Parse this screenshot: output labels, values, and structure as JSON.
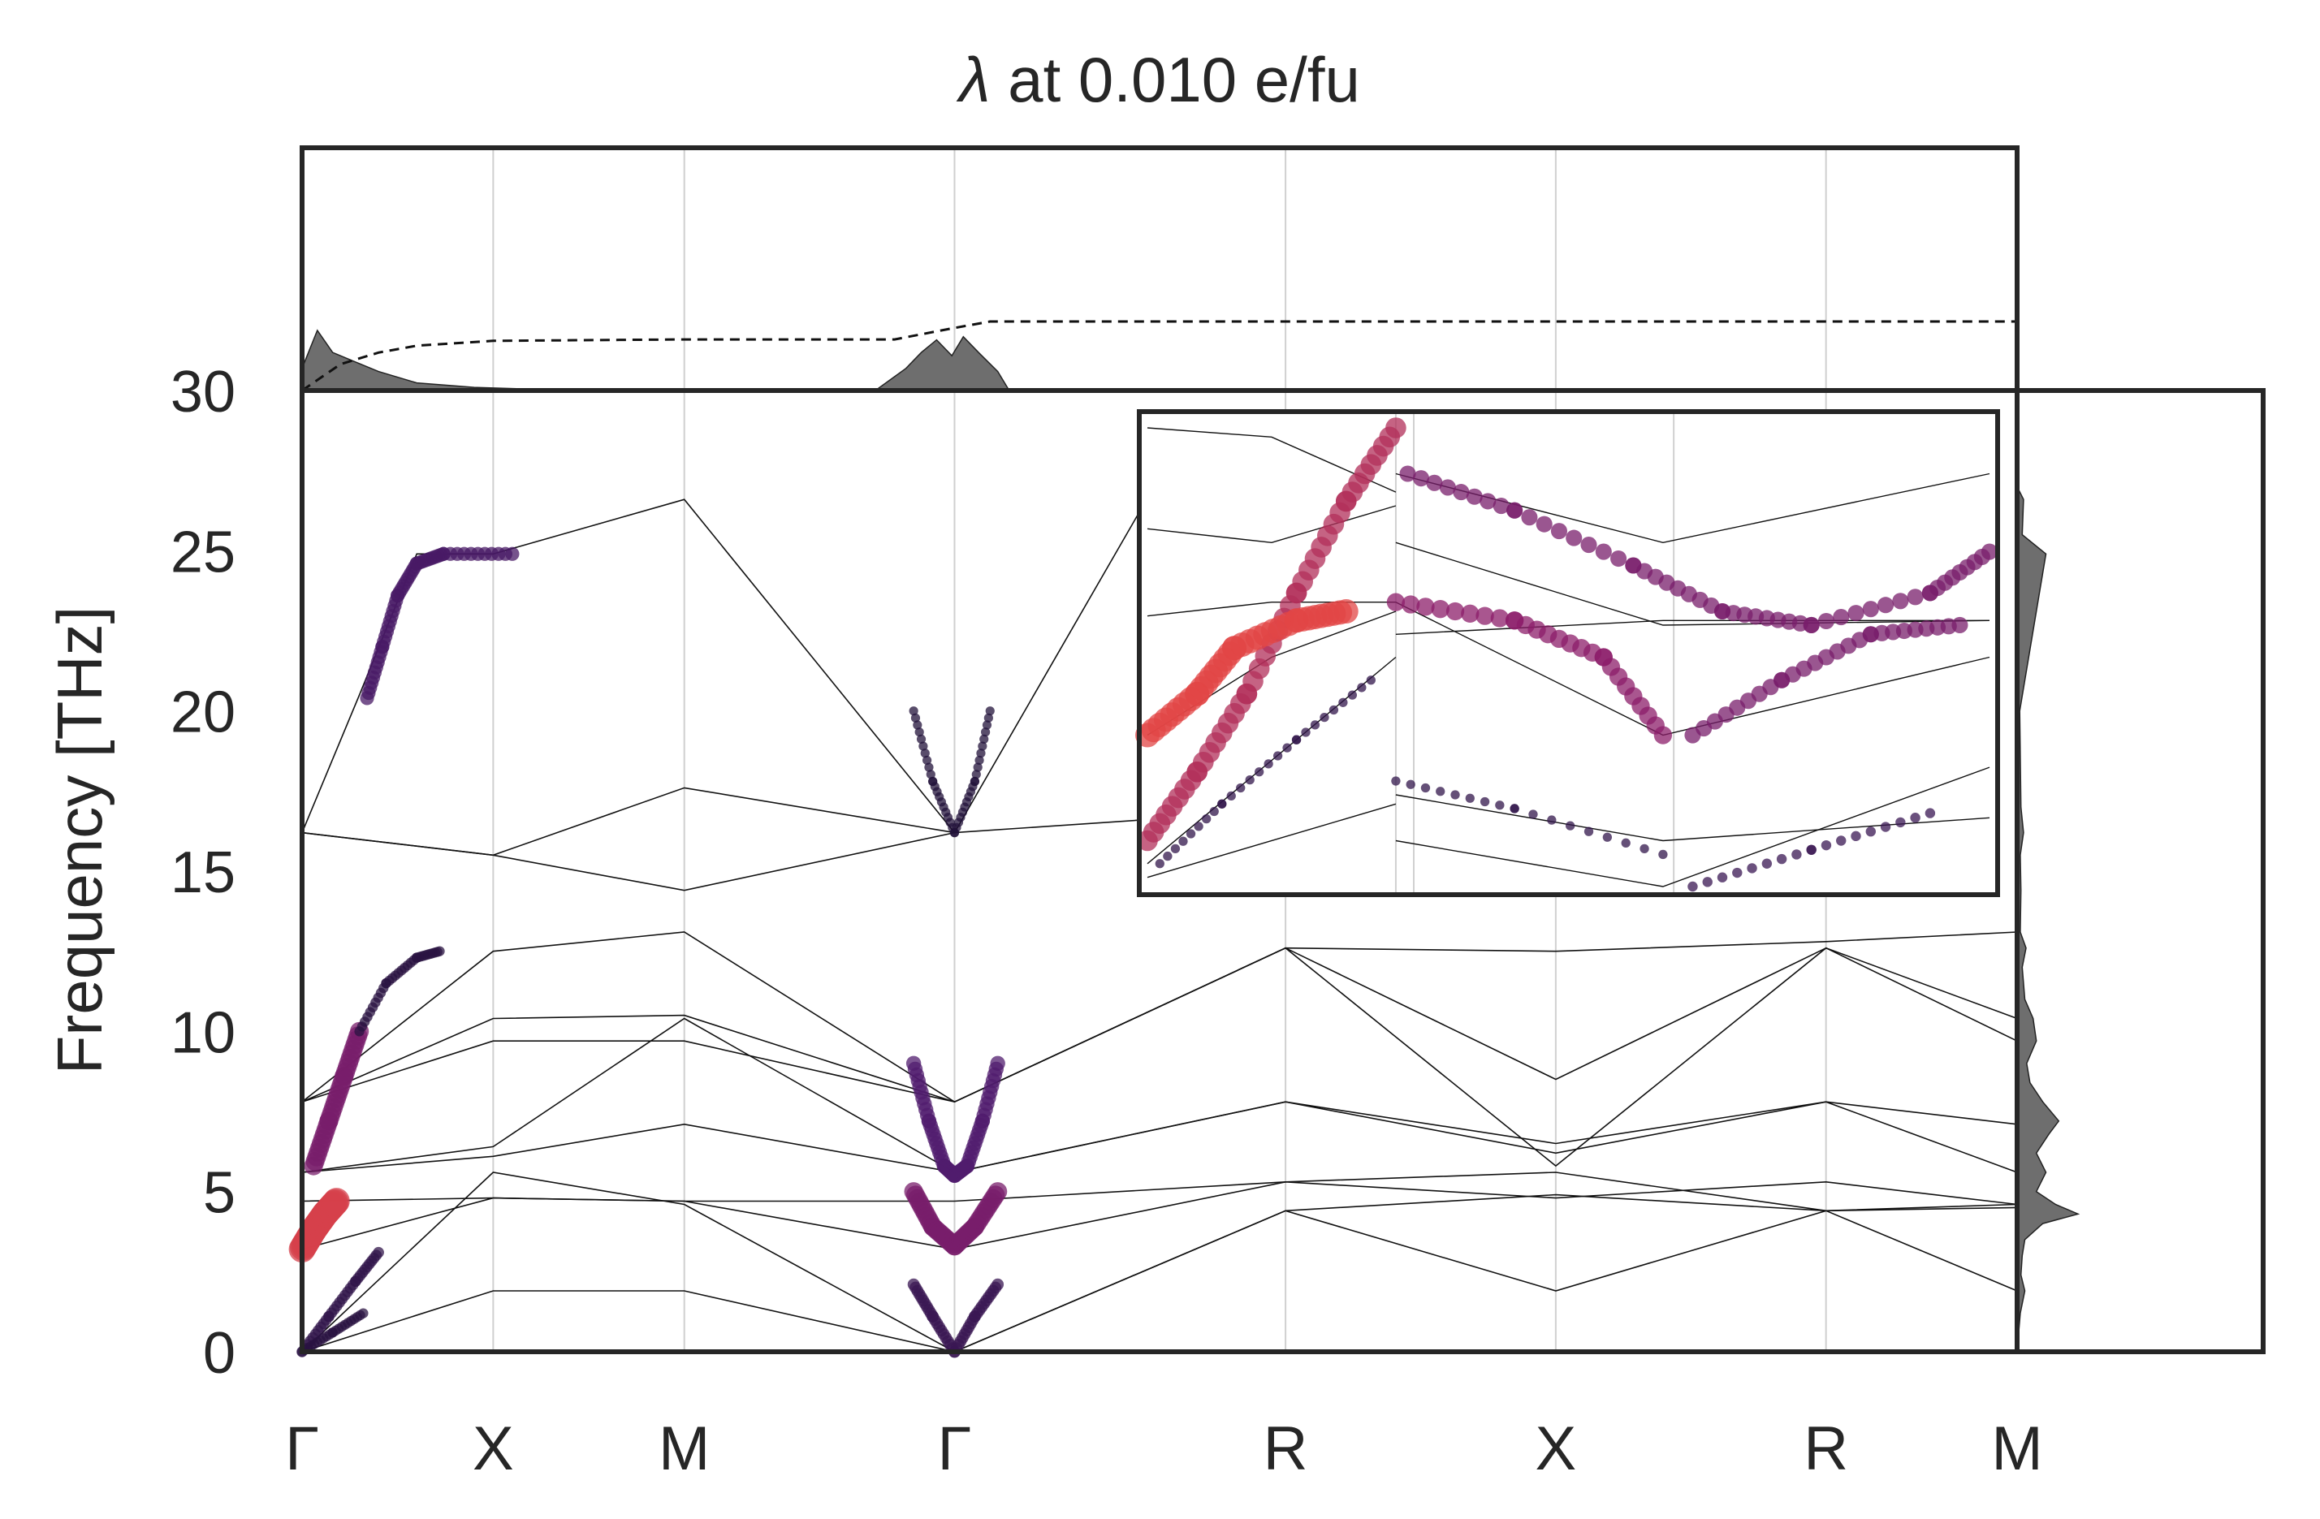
{
  "chart_data": {
    "type": "line",
    "title_symbol": "λ",
    "title_rest": " at 0.010 e/fu",
    "ylabel": "Frequency [THz]",
    "xlabel": "",
    "ylim": [
      0,
      30
    ],
    "yticks": [
      0,
      5,
      10,
      15,
      20,
      25,
      30
    ],
    "high_symmetry_points": [
      {
        "label": "Γ",
        "q": 0.0
      },
      {
        "label": "X",
        "q": 0.5
      },
      {
        "label": "M",
        "q": 1.0
      },
      {
        "label": "Γ",
        "q": 1.707
      },
      {
        "label": "R",
        "q": 2.573
      },
      {
        "label": "X",
        "q": 3.28
      },
      {
        "label": "R",
        "q": 3.987
      },
      {
        "label": "M",
        "q": 4.487
      }
    ],
    "series": [
      {
        "values": [
          [
            0.0,
            16.2
          ],
          [
            0.5,
            15.5
          ],
          [
            1.0,
            14.4
          ],
          [
            1.707,
            16.2
          ]
        ]
      },
      {
        "values": [
          [
            0.0,
            16.2
          ],
          [
            0.5,
            15.5
          ],
          [
            1.0,
            17.6
          ],
          [
            1.707,
            16.2
          ],
          [
            2.573,
            16.9
          ],
          [
            3.28,
            16.9
          ]
        ]
      },
      {
        "values": [
          [
            0.0,
            16.2
          ],
          [
            0.15,
            20.5
          ],
          [
            0.3,
            24.9
          ],
          [
            0.5,
            24.9
          ],
          [
            1.0,
            26.6
          ],
          [
            1.707,
            16.2
          ],
          [
            2.2,
            26.4
          ]
        ]
      },
      {
        "values": [
          [
            0.0,
            7.8
          ],
          [
            0.5,
            12.5
          ],
          [
            1.0,
            13.1
          ],
          [
            1.707,
            7.8
          ],
          [
            2.573,
            12.6
          ],
          [
            3.28,
            12.5
          ],
          [
            3.987,
            12.8
          ],
          [
            4.487,
            13.1
          ]
        ]
      },
      {
        "values": [
          [
            0.0,
            7.8
          ],
          [
            0.5,
            9.7
          ],
          [
            1.0,
            9.7
          ],
          [
            1.707,
            7.8
          ],
          [
            2.573,
            12.6
          ],
          [
            3.28,
            5.8
          ],
          [
            3.987,
            12.6
          ],
          [
            4.487,
            9.7
          ]
        ]
      },
      {
        "values": [
          [
            0.0,
            7.8
          ],
          [
            0.5,
            10.4
          ],
          [
            1.0,
            10.5
          ],
          [
            1.707,
            7.8
          ],
          [
            2.573,
            12.6
          ],
          [
            3.28,
            8.5
          ],
          [
            3.987,
            12.6
          ],
          [
            4.487,
            10.4
          ]
        ]
      },
      {
        "values": [
          [
            0.0,
            5.6
          ],
          [
            0.5,
            6.4
          ],
          [
            1.0,
            10.4
          ],
          [
            1.707,
            5.6
          ],
          [
            2.573,
            7.8
          ],
          [
            3.28,
            6.5
          ],
          [
            3.987,
            7.8
          ],
          [
            4.487,
            7.1
          ]
        ]
      },
      {
        "values": [
          [
            0.0,
            5.6
          ],
          [
            0.5,
            6.1
          ],
          [
            1.0,
            7.1
          ],
          [
            1.707,
            5.6
          ],
          [
            2.573,
            7.8
          ],
          [
            3.28,
            6.2
          ],
          [
            3.987,
            7.8
          ],
          [
            4.487,
            5.6
          ]
        ]
      },
      {
        "values": [
          [
            0.0,
            4.7
          ],
          [
            0.5,
            4.8
          ],
          [
            1.0,
            4.7
          ],
          [
            1.707,
            4.7
          ],
          [
            2.573,
            5.3
          ],
          [
            3.28,
            4.8
          ],
          [
            3.987,
            5.3
          ],
          [
            4.487,
            4.6
          ]
        ]
      },
      {
        "values": [
          [
            0.0,
            3.2
          ],
          [
            0.5,
            4.8
          ],
          [
            1.0,
            4.7
          ],
          [
            1.707,
            3.2
          ],
          [
            2.573,
            5.3
          ],
          [
            3.28,
            5.6
          ],
          [
            3.987,
            4.4
          ],
          [
            4.487,
            4.6
          ]
        ]
      },
      {
        "values": [
          [
            0.0,
            0.0
          ],
          [
            0.5,
            5.6
          ],
          [
            1.0,
            4.6
          ],
          [
            1.707,
            0.0
          ],
          [
            2.573,
            4.4
          ],
          [
            3.28,
            4.9
          ],
          [
            3.987,
            4.4
          ],
          [
            4.487,
            4.5
          ]
        ]
      },
      {
        "values": [
          [
            0.0,
            0.0
          ],
          [
            0.5,
            1.9
          ],
          [
            1.0,
            1.9
          ],
          [
            1.707,
            0.0
          ],
          [
            2.573,
            4.4
          ],
          [
            3.28,
            1.9
          ],
          [
            3.987,
            4.4
          ],
          [
            4.487,
            1.9
          ]
        ]
      }
    ],
    "coupling_segments": [
      {
        "points": [
          [
            0.0,
            0.0
          ],
          [
            0.07,
            1.1
          ],
          [
            0.14,
            2.2
          ],
          [
            0.2,
            3.1
          ]
        ],
        "strength": 0.15
      },
      {
        "points": [
          [
            0.0,
            0.0
          ],
          [
            0.08,
            0.6
          ],
          [
            0.16,
            1.2
          ]
        ],
        "strength": 0.1
      },
      {
        "points": [
          [
            0.0,
            3.2
          ],
          [
            0.03,
            3.8
          ],
          [
            0.06,
            4.3
          ],
          [
            0.09,
            4.7
          ]
        ],
        "strength": 0.95
      },
      {
        "points": [
          [
            0.03,
            5.8
          ],
          [
            0.07,
            7.2
          ],
          [
            0.11,
            8.6
          ],
          [
            0.15,
            10.0
          ]
        ],
        "strength": 0.55
      },
      {
        "points": [
          [
            0.15,
            10.0
          ],
          [
            0.22,
            11.5
          ],
          [
            0.3,
            12.3
          ],
          [
            0.36,
            12.5
          ]
        ],
        "strength": 0.1
      },
      {
        "points": [
          [
            0.17,
            20.4
          ],
          [
            0.21,
            22.0
          ],
          [
            0.25,
            23.6
          ],
          [
            0.3,
            24.6
          ],
          [
            0.37,
            24.9
          ],
          [
            0.55,
            24.9
          ]
        ],
        "strength": 0.3
      },
      {
        "points": [
          [
            1.6,
            2.1
          ],
          [
            1.65,
            1.1
          ],
          [
            1.707,
            0.0
          ],
          [
            1.76,
            1.1
          ],
          [
            1.82,
            2.1
          ]
        ],
        "strength": 0.2
      },
      {
        "points": [
          [
            1.6,
            5.0
          ],
          [
            1.65,
            3.9
          ],
          [
            1.707,
            3.3
          ],
          [
            1.76,
            3.9
          ],
          [
            1.82,
            5.0
          ]
        ],
        "strength": 0.55
      },
      {
        "points": [
          [
            1.6,
            9.0
          ],
          [
            1.64,
            7.2
          ],
          [
            1.68,
            5.8
          ],
          [
            1.707,
            5.5
          ],
          [
            1.74,
            5.8
          ],
          [
            1.78,
            7.2
          ],
          [
            1.82,
            9.0
          ]
        ],
        "strength": 0.35
      },
      {
        "points": [
          [
            1.6,
            20.0
          ],
          [
            1.65,
            17.8
          ],
          [
            1.707,
            16.2
          ],
          [
            1.76,
            17.8
          ],
          [
            1.8,
            20.0
          ]
        ],
        "strength": 0.05
      }
    ],
    "dos": [
      [
        0.5,
        0.02
      ],
      [
        1.2,
        0.05
      ],
      [
        1.9,
        0.12
      ],
      [
        2.4,
        0.06
      ],
      [
        3.0,
        0.08
      ],
      [
        3.5,
        0.12
      ],
      [
        4.0,
        0.4
      ],
      [
        4.3,
        0.95
      ],
      [
        4.6,
        0.6
      ],
      [
        5.0,
        0.3
      ],
      [
        5.6,
        0.45
      ],
      [
        6.2,
        0.3
      ],
      [
        6.8,
        0.5
      ],
      [
        7.2,
        0.65
      ],
      [
        7.8,
        0.4
      ],
      [
        8.4,
        0.2
      ],
      [
        9.0,
        0.15
      ],
      [
        9.7,
        0.3
      ],
      [
        10.4,
        0.25
      ],
      [
        11.0,
        0.12
      ],
      [
        12.0,
        0.08
      ],
      [
        12.6,
        0.14
      ],
      [
        13.1,
        0.05
      ],
      [
        14.4,
        0.06
      ],
      [
        15.5,
        0.05
      ],
      [
        16.2,
        0.1
      ],
      [
        17.0,
        0.06
      ],
      [
        20.0,
        0.04
      ],
      [
        24.9,
        0.45
      ],
      [
        25.5,
        0.08
      ],
      [
        26.6,
        0.1
      ],
      [
        27.0,
        0.0
      ]
    ],
    "top_panel": {
      "a2f_spikes": [
        [
          0.0,
          0.35
        ],
        [
          0.04,
          0.95
        ],
        [
          0.08,
          0.6
        ],
        [
          0.14,
          0.45
        ],
        [
          0.2,
          0.3
        ],
        [
          0.3,
          0.12
        ],
        [
          0.45,
          0.05
        ],
        [
          0.6,
          0.02
        ],
        [
          1.5,
          0.0
        ],
        [
          1.58,
          0.35
        ],
        [
          1.62,
          0.6
        ],
        [
          1.66,
          0.8
        ],
        [
          1.7,
          0.55
        ],
        [
          1.73,
          0.85
        ],
        [
          1.77,
          0.6
        ],
        [
          1.82,
          0.3
        ],
        [
          1.85,
          0.0
        ]
      ],
      "lambda_cumulative": [
        [
          0.0,
          0.0
        ],
        [
          0.1,
          0.38
        ],
        [
          0.2,
          0.55
        ],
        [
          0.3,
          0.65
        ],
        [
          0.5,
          0.72
        ],
        [
          1.0,
          0.74
        ],
        [
          1.55,
          0.74
        ],
        [
          1.7,
          0.9
        ],
        [
          1.8,
          1.0
        ],
        [
          4.487,
          1.0
        ]
      ]
    },
    "inset": {
      "lines": [
        [
          [
            0.0,
            0.05
          ],
          [
            1.0,
            0.5
          ]
        ],
        [
          [
            0.0,
            0.02
          ],
          [
            1.0,
            0.18
          ]
        ],
        [
          [
            0.0,
            0.33
          ],
          [
            0.5,
            0.5
          ],
          [
            1.0,
            0.6
          ]
        ],
        [
          [
            0.0,
            0.59
          ],
          [
            0.5,
            0.62
          ],
          [
            1.0,
            0.62
          ]
        ],
        [
          [
            0.0,
            0.78
          ],
          [
            0.5,
            0.75
          ],
          [
            1.0,
            0.83
          ]
        ],
        [
          [
            0.0,
            1.0
          ],
          [
            0.5,
            0.98
          ],
          [
            1.0,
            0.86
          ]
        ],
        [
          [
            0.0,
            0.1
          ],
          [
            0.45,
            0.0
          ],
          [
            1.0,
            0.26
          ]
        ],
        [
          [
            0.0,
            0.2
          ],
          [
            0.45,
            0.1
          ],
          [
            1.0,
            0.15
          ]
        ],
        [
          [
            0.0,
            0.62
          ],
          [
            0.45,
            0.33
          ],
          [
            1.0,
            0.5
          ]
        ],
        [
          [
            0.0,
            0.55
          ],
          [
            0.45,
            0.58
          ],
          [
            1.0,
            0.58
          ]
        ],
        [
          [
            0.0,
            0.75
          ],
          [
            0.45,
            0.57
          ],
          [
            1.0,
            0.58
          ]
        ],
        [
          [
            0.0,
            0.9
          ],
          [
            0.45,
            0.75
          ],
          [
            1.0,
            0.9
          ]
        ]
      ],
      "markers": [
        {
          "points": [
            [
              0.0,
              0.1
            ],
            [
              0.2,
              0.25
            ],
            [
              0.4,
              0.42
            ],
            [
              0.6,
              0.64
            ],
            [
              0.8,
              0.84
            ],
            [
              1.0,
              1.0
            ]
          ],
          "strength": 0.8
        },
        {
          "points": [
            [
              0.0,
              0.33
            ],
            [
              0.2,
              0.42
            ],
            [
              0.35,
              0.52
            ],
            [
              0.6,
              0.58
            ],
            [
              0.8,
              0.6
            ]
          ],
          "strength": 1.0
        },
        {
          "points": [
            [
              0.05,
              0.05
            ],
            [
              0.3,
              0.18
            ],
            [
              0.6,
              0.32
            ],
            [
              0.9,
              0.45
            ]
          ],
          "strength": 0.15
        },
        {
          "points": [
            [
              0.02,
              0.9
            ],
            [
              0.2,
              0.82
            ],
            [
              0.4,
              0.7
            ],
            [
              0.55,
              0.6
            ],
            [
              0.7,
              0.57
            ],
            [
              0.9,
              0.64
            ],
            [
              1.0,
              0.73
            ]
          ],
          "strength": 0.55
        },
        {
          "points": [
            [
              0.0,
              0.62
            ],
            [
              0.2,
              0.58
            ],
            [
              0.35,
              0.5
            ],
            [
              0.45,
              0.33
            ]
          ],
          "strength": 0.65
        },
        {
          "points": [
            [
              0.5,
              0.33
            ],
            [
              0.65,
              0.45
            ],
            [
              0.8,
              0.55
            ],
            [
              0.95,
              0.57
            ]
          ],
          "strength": 0.55
        },
        {
          "points": [
            [
              0.0,
              0.23
            ],
            [
              0.2,
              0.17
            ],
            [
              0.45,
              0.07
            ]
          ],
          "strength": 0.15
        },
        {
          "points": [
            [
              0.5,
              0.0
            ],
            [
              0.7,
              0.08
            ],
            [
              0.9,
              0.16
            ]
          ],
          "strength": 0.2
        }
      ]
    }
  }
}
